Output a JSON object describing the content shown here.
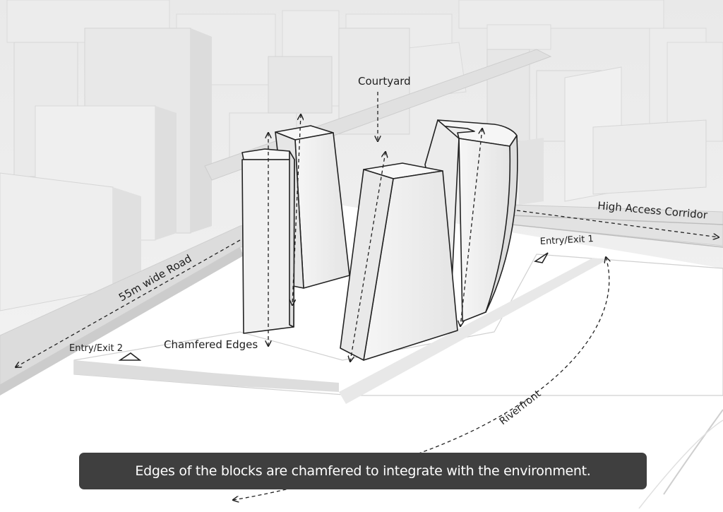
{
  "labels": {
    "courtyard": "Courtyard",
    "high_access_corridor": "High Access Corridor",
    "entry_exit_1": "Entry/Exit 1",
    "entry_exit_2": "Entry/Exit 2",
    "road": "55m wide Road",
    "chamfered_edges": "Chamfered Edges",
    "riverfront": "Riverfront"
  },
  "caption": "Edges of the blocks are chamfered to integrate with the environment.",
  "colors": {
    "caption_bg": "#3f3f3f",
    "caption_text": "#ffffff",
    "context_light": "#efefef",
    "context_mid": "#e3e3e3",
    "context_dark": "#d6d6d6",
    "tower_face": "#f4f4f4",
    "tower_shade": "#e6e6e6",
    "outline": "#222222"
  }
}
